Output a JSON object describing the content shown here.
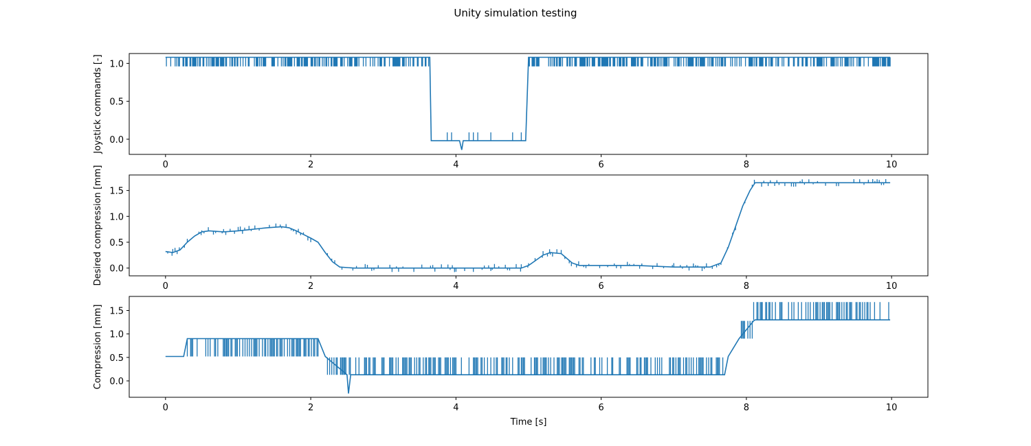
{
  "figure": {
    "title": "Unity simulation testing",
    "line_color": "#1f77b4"
  },
  "chart_data": [
    {
      "type": "line",
      "ylabel": "Joystick commands [-]",
      "xlabel": "",
      "xlim": [
        -0.5,
        10.5
      ],
      "ylim": [
        -0.2,
        1.13
      ],
      "xticks": [
        0,
        2,
        4,
        6,
        8,
        10
      ],
      "yticks": [
        0.0,
        0.5,
        1.0
      ],
      "ytick_labels": [
        "0.0",
        "0.5",
        "1.0"
      ],
      "grid": false,
      "series": [
        {
          "x": [
            0,
            0.3,
            0.6,
            0.9,
            1.2,
            1.5,
            1.8,
            2.1,
            2.4,
            2.7,
            3.0,
            3.3,
            3.6,
            3.64,
            3.66,
            3.9,
            4.05,
            4.08,
            4.1,
            4.3,
            4.6,
            4.96,
            5.0,
            5.3,
            5.6,
            6.0,
            6.5,
            7.0,
            7.5,
            8.0,
            8.5,
            9.0,
            9.5,
            9.98
          ],
          "y": [
            1.08,
            1.08,
            1.08,
            1.08,
            1.08,
            1.08,
            1.08,
            1.08,
            1.08,
            1.08,
            1.08,
            1.08,
            1.08,
            1.08,
            -0.02,
            -0.02,
            -0.02,
            -0.14,
            -0.02,
            -0.02,
            -0.02,
            -0.02,
            1.08,
            1.08,
            1.08,
            1.08,
            1.08,
            1.08,
            1.08,
            1.08,
            1.08,
            1.08,
            1.08,
            1.08
          ],
          "noise": {
            "base": 1.08,
            "low": 0.96,
            "ranges": [
              [
                0.0,
                3.64
              ],
              [
                5.0,
                9.98
              ]
            ]
          },
          "spikes": {
            "base": -0.02,
            "high": 0.09,
            "range": [
              3.7,
              4.95
            ]
          }
        }
      ]
    },
    {
      "type": "line",
      "ylabel": "Desired compression [mm]",
      "xlabel": "",
      "xlim": [
        -0.5,
        10.5
      ],
      "ylim": [
        -0.15,
        1.8
      ],
      "xticks": [
        0,
        2,
        4,
        6,
        8,
        10
      ],
      "yticks": [
        0.0,
        0.5,
        1.0,
        1.5
      ],
      "ytick_labels": [
        "0.0",
        "0.5",
        "1.0",
        "1.5"
      ],
      "grid": false,
      "series": [
        {
          "x": [
            0,
            0.1,
            0.2,
            0.3,
            0.4,
            0.5,
            0.6,
            0.8,
            1.0,
            1.2,
            1.4,
            1.6,
            1.7,
            1.8,
            1.9,
            2.0,
            2.1,
            2.2,
            2.3,
            2.4,
            2.6,
            3.0,
            3.5,
            4.0,
            4.5,
            4.9,
            5.0,
            5.1,
            5.2,
            5.3,
            5.45,
            5.5,
            5.6,
            5.7,
            5.8,
            6.0,
            6.5,
            7.0,
            7.5,
            7.65,
            7.75,
            7.85,
            7.95,
            8.05,
            8.12,
            8.15,
            8.5,
            9.0,
            9.5,
            9.98
          ],
          "y": [
            0.32,
            0.3,
            0.35,
            0.5,
            0.62,
            0.7,
            0.72,
            0.7,
            0.72,
            0.75,
            0.78,
            0.8,
            0.78,
            0.72,
            0.65,
            0.58,
            0.5,
            0.3,
            0.12,
            0.02,
            0.0,
            0.0,
            0.0,
            0.0,
            0.0,
            0.0,
            0.05,
            0.15,
            0.25,
            0.3,
            0.28,
            0.22,
            0.1,
            0.05,
            0.05,
            0.05,
            0.05,
            0.02,
            0.02,
            0.1,
            0.4,
            0.8,
            1.2,
            1.5,
            1.65,
            1.65,
            1.65,
            1.65,
            1.65,
            1.65
          ]
        }
      ]
    },
    {
      "type": "line",
      "ylabel": "Compression [mm]",
      "xlabel": "Time [s]",
      "xlim": [
        -0.5,
        10.5
      ],
      "ylim": [
        -0.35,
        1.8
      ],
      "xticks": [
        0,
        2,
        4,
        6,
        8,
        10
      ],
      "yticks": [
        0.0,
        0.5,
        1.0,
        1.5
      ],
      "ytick_labels": [
        "0.0",
        "0.5",
        "1.0",
        "1.5"
      ],
      "grid": false,
      "series": [
        {
          "x": [
            0,
            0.2,
            0.25,
            0.3,
            2.1,
            2.2,
            2.5,
            2.52,
            2.55,
            3.0,
            5.0,
            7.7,
            7.75,
            7.9,
            8.1,
            8.12,
            9.98
          ],
          "y": [
            0.52,
            0.52,
            0.52,
            0.9,
            0.9,
            0.52,
            0.13,
            -0.27,
            0.13,
            0.13,
            0.13,
            0.13,
            0.52,
            0.9,
            1.28,
            1.3,
            1.3
          ],
          "segments": [
            {
              "range": [
                0.3,
                2.1
              ],
              "hi": 0.9,
              "lo": 0.52
            },
            {
              "range": [
                2.2,
                7.7
              ],
              "hi": 0.5,
              "lo": 0.13
            },
            {
              "range": [
                7.9,
                8.1
              ],
              "hi": 1.28,
              "lo": 0.9
            },
            {
              "range": [
                8.1,
                9.98
              ],
              "hi": 1.68,
              "lo": 1.3
            }
          ]
        }
      ]
    }
  ]
}
